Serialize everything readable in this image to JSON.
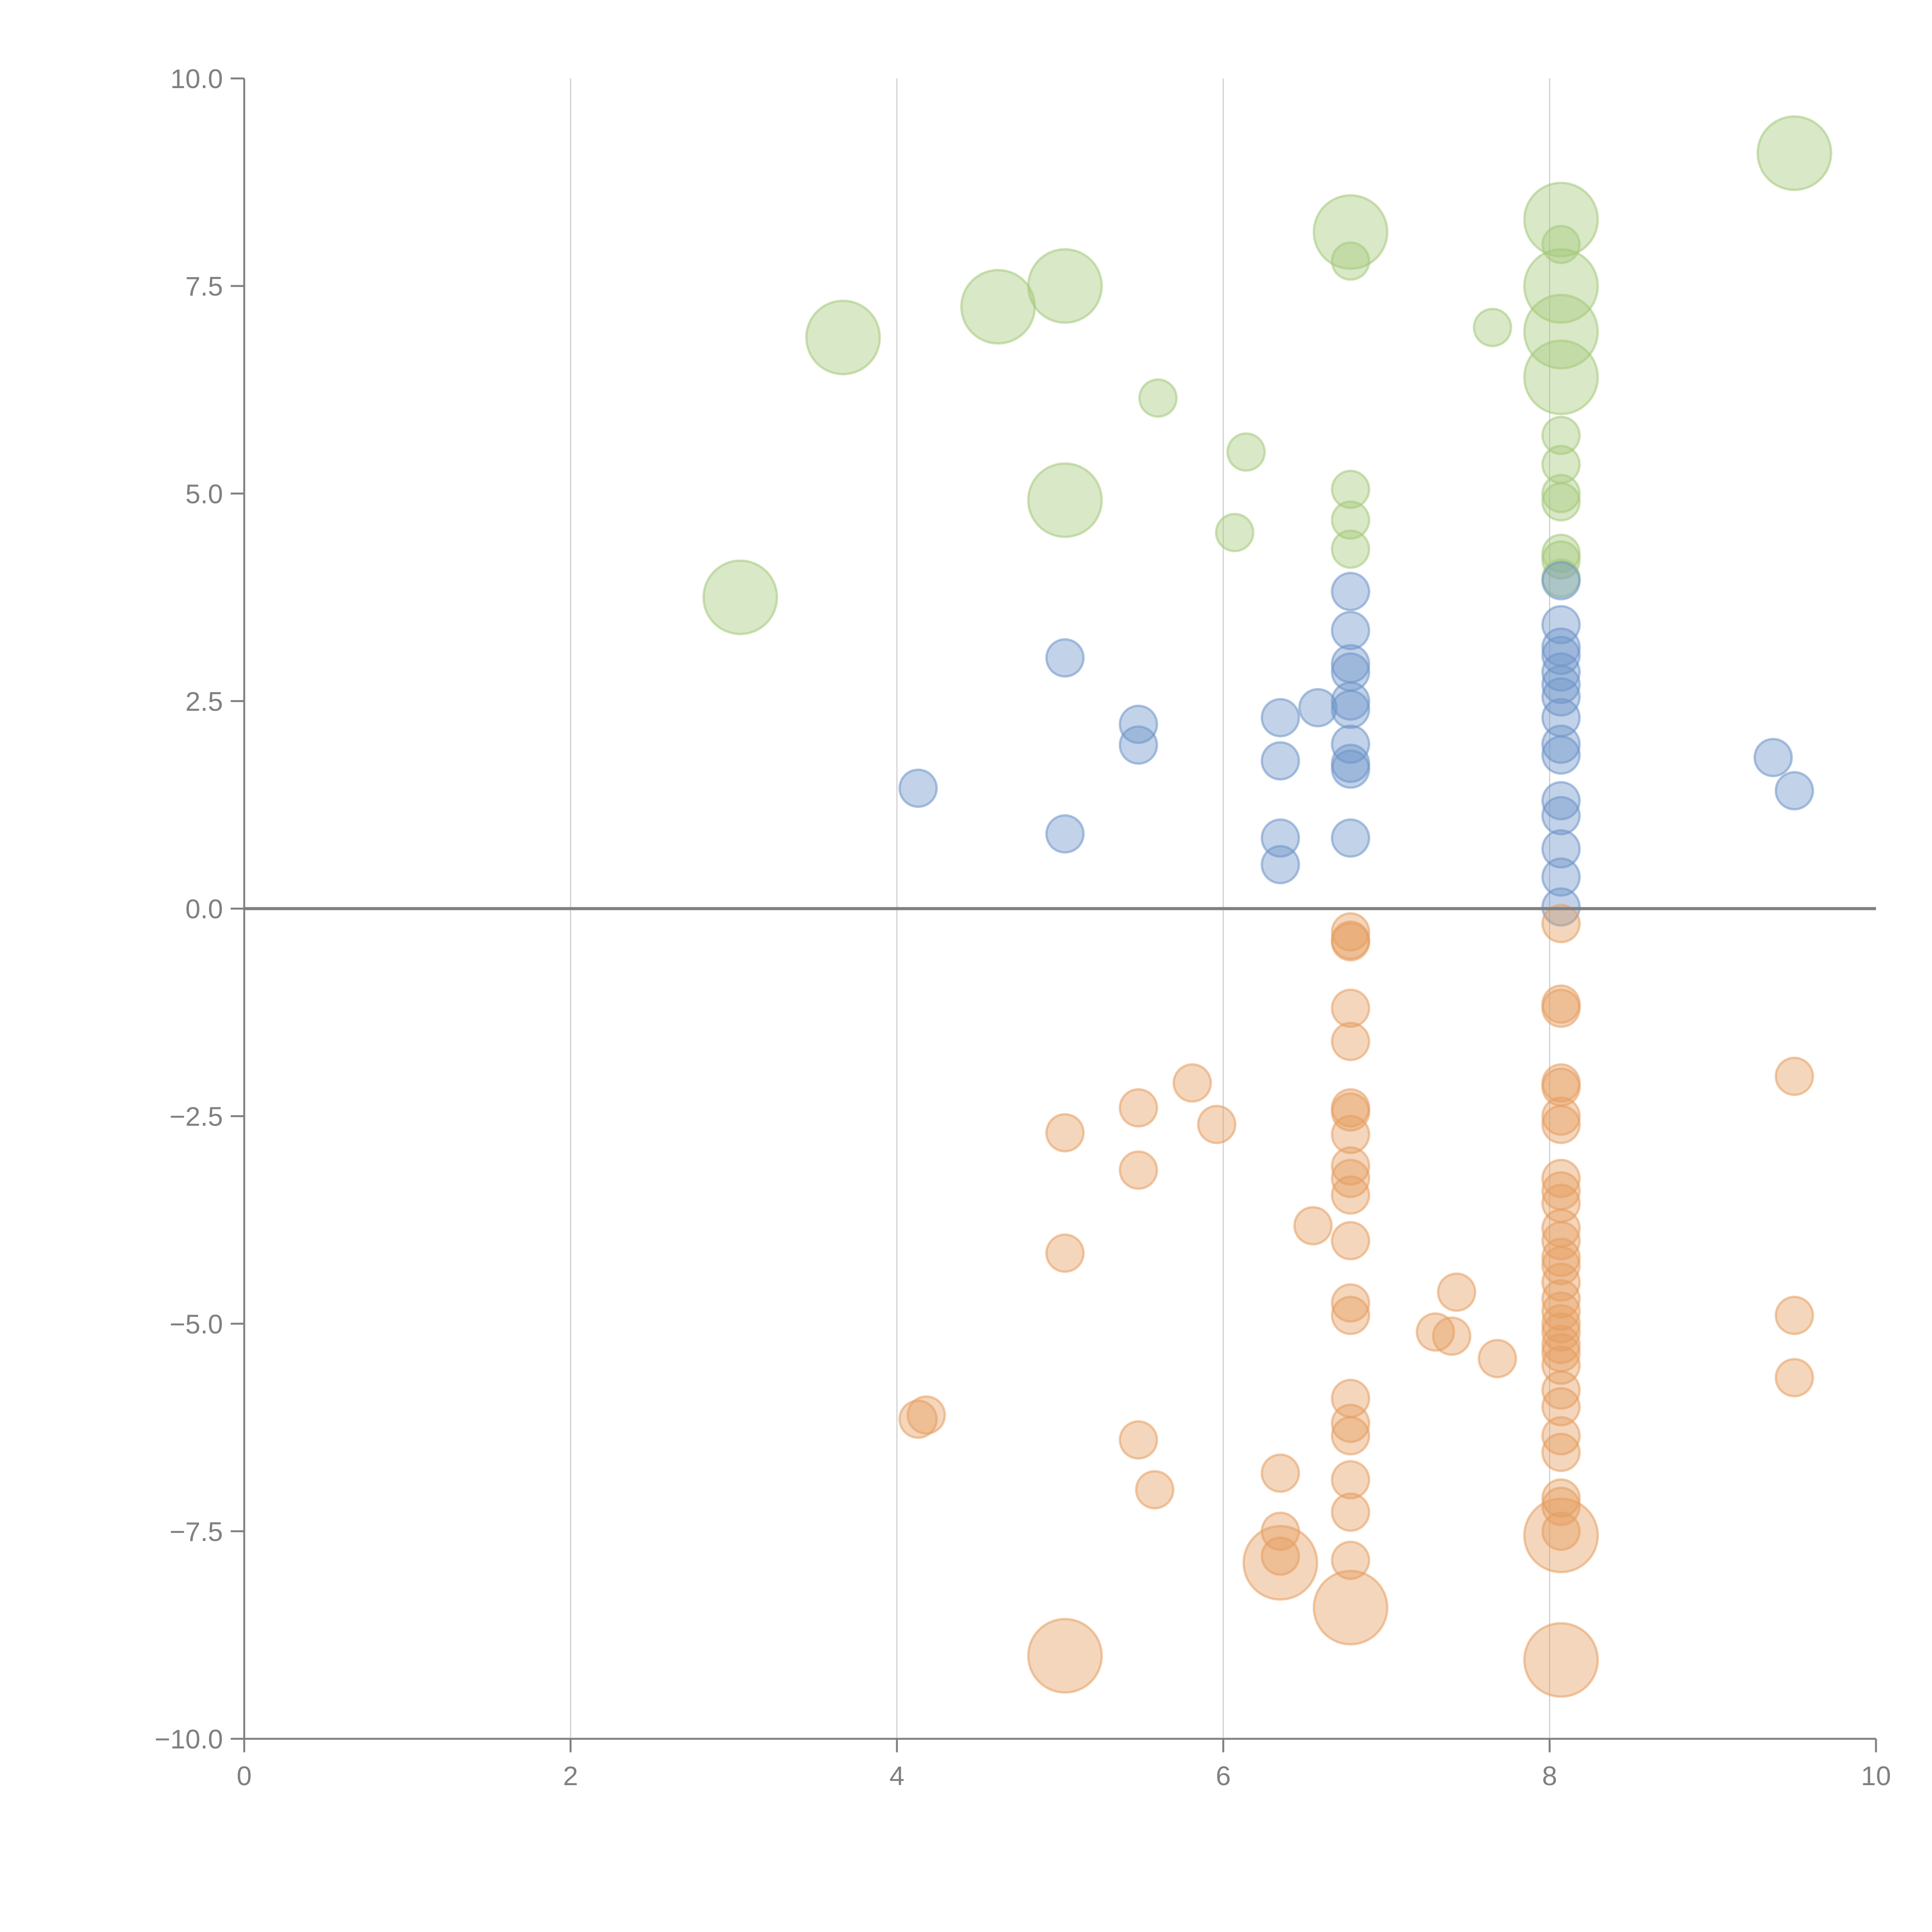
{
  "chart_data": {
    "type": "scatter",
    "subtype": "bubble",
    "title": "",
    "xlabel": "",
    "ylabel": "",
    "xlim": [
      0,
      10
    ],
    "ylim": [
      -10,
      10
    ],
    "grid": "vertical",
    "legend": "none",
    "x_ticks": [
      "0",
      "2",
      "4",
      "6",
      "8",
      "10"
    ],
    "y_ticks": [
      "10.0",
      "7.5",
      "5.0",
      "2.5",
      "0.0",
      "−2.5",
      "−5.0",
      "−7.5",
      "−10.0"
    ],
    "colors": {
      "green": "#a4c87a",
      "blue": "#6e93c9",
      "orange": "#e59e60",
      "axis": "#808080"
    },
    "series": [
      {
        "name": "green",
        "color": "#a4c87a",
        "points": [
          [
            9.5,
            9.1,
            3
          ],
          [
            8.07,
            8.3,
            3
          ],
          [
            6.78,
            8.15,
            3
          ],
          [
            8.07,
            7.5,
            3
          ],
          [
            5.03,
            7.5,
            3
          ],
          [
            4.62,
            7.25,
            3
          ],
          [
            3.67,
            6.88,
            3
          ],
          [
            8.07,
            6.95,
            3
          ],
          [
            8.07,
            6.4,
            3
          ],
          [
            3.04,
            3.75,
            3
          ],
          [
            5.03,
            4.92,
            3
          ],
          [
            8.07,
            8.0,
            1
          ],
          [
            6.78,
            7.8,
            1
          ],
          [
            7.65,
            7.0,
            1
          ],
          [
            5.6,
            6.15,
            1
          ],
          [
            6.14,
            5.5,
            1
          ],
          [
            8.07,
            5.7,
            1
          ],
          [
            8.07,
            5.35,
            1
          ],
          [
            8.07,
            5.0,
            1
          ],
          [
            8.07,
            4.9,
            1
          ],
          [
            6.78,
            5.05,
            1
          ],
          [
            6.78,
            4.68,
            1
          ],
          [
            6.07,
            4.53,
            1
          ],
          [
            6.78,
            4.33,
            1
          ],
          [
            8.07,
            4.28,
            1
          ],
          [
            8.07,
            4.2,
            1
          ],
          [
            8.07,
            3.98,
            1
          ]
        ]
      },
      {
        "name": "blue",
        "color": "#6e93c9",
        "points": [
          [
            6.78,
            3.82,
            1
          ],
          [
            8.07,
            3.95,
            1
          ],
          [
            6.78,
            3.35,
            1
          ],
          [
            8.07,
            3.42,
            1
          ],
          [
            6.78,
            2.95,
            1
          ],
          [
            6.78,
            2.85,
            1
          ],
          [
            8.07,
            3.15,
            1
          ],
          [
            8.07,
            3.05,
            1
          ],
          [
            8.07,
            2.85,
            1
          ],
          [
            8.07,
            2.7,
            1
          ],
          [
            8.07,
            2.55,
            1
          ],
          [
            5.03,
            3.02,
            1
          ],
          [
            6.58,
            2.42,
            1
          ],
          [
            6.35,
            2.3,
            1
          ],
          [
            6.78,
            2.5,
            1
          ],
          [
            6.78,
            2.4,
            1
          ],
          [
            5.48,
            2.22,
            1
          ],
          [
            8.07,
            2.3,
            1
          ],
          [
            5.48,
            1.97,
            1
          ],
          [
            6.78,
            1.98,
            1
          ],
          [
            8.07,
            1.98,
            1
          ],
          [
            8.07,
            1.85,
            1
          ],
          [
            6.35,
            1.78,
            1
          ],
          [
            6.78,
            1.75,
            1
          ],
          [
            6.78,
            1.68,
            1
          ],
          [
            9.37,
            1.82,
            1
          ],
          [
            9.5,
            1.42,
            1
          ],
          [
            4.13,
            1.45,
            1
          ],
          [
            8.07,
            1.3,
            1
          ],
          [
            8.07,
            1.12,
            1
          ],
          [
            5.03,
            0.9,
            1
          ],
          [
            6.35,
            0.85,
            1
          ],
          [
            6.78,
            0.85,
            1
          ],
          [
            8.07,
            0.72,
            1
          ],
          [
            6.35,
            0.53,
            1
          ],
          [
            8.07,
            0.38,
            1
          ],
          [
            8.07,
            0.02,
            1
          ]
        ]
      },
      {
        "name": "orange",
        "color": "#e59e60",
        "points": [
          [
            8.07,
            -0.18,
            1
          ],
          [
            6.78,
            -0.28,
            1
          ],
          [
            6.78,
            -0.38,
            1
          ],
          [
            6.78,
            -0.4,
            1
          ],
          [
            8.07,
            -1.15,
            1
          ],
          [
            8.07,
            -1.2,
            1
          ],
          [
            6.78,
            -1.2,
            1
          ],
          [
            6.78,
            -1.6,
            1
          ],
          [
            8.07,
            -2.1,
            1
          ],
          [
            8.07,
            -2.15,
            1
          ],
          [
            5.81,
            -2.1,
            1
          ],
          [
            9.5,
            -2.02,
            1
          ],
          [
            5.48,
            -2.4,
            1
          ],
          [
            6.78,
            -2.4,
            1
          ],
          [
            6.78,
            -2.45,
            1
          ],
          [
            8.07,
            -2.5,
            1
          ],
          [
            5.96,
            -2.6,
            1
          ],
          [
            8.07,
            -2.6,
            1
          ],
          [
            5.03,
            -2.7,
            1
          ],
          [
            6.78,
            -2.72,
            1
          ],
          [
            5.48,
            -3.15,
            1
          ],
          [
            6.78,
            -3.1,
            1
          ],
          [
            6.78,
            -3.25,
            1
          ],
          [
            8.07,
            -3.25,
            1
          ],
          [
            8.07,
            -3.4,
            1
          ],
          [
            8.07,
            -3.55,
            1
          ],
          [
            6.78,
            -3.45,
            1
          ],
          [
            6.55,
            -3.82,
            1
          ],
          [
            8.07,
            -3.85,
            1
          ],
          [
            8.07,
            -4.0,
            1
          ],
          [
            6.78,
            -4.0,
            1
          ],
          [
            5.03,
            -4.15,
            1
          ],
          [
            8.07,
            -4.2,
            1
          ],
          [
            8.07,
            -4.3,
            1
          ],
          [
            8.07,
            -4.5,
            1
          ],
          [
            7.43,
            -4.62,
            1
          ],
          [
            8.07,
            -4.7,
            1
          ],
          [
            6.78,
            -4.75,
            1
          ],
          [
            8.07,
            -4.85,
            1
          ],
          [
            6.78,
            -4.9,
            1
          ],
          [
            9.5,
            -4.9,
            1
          ],
          [
            8.07,
            -5.0,
            1
          ],
          [
            8.07,
            -5.1,
            1
          ],
          [
            7.3,
            -5.1,
            1
          ],
          [
            7.4,
            -5.15,
            1
          ],
          [
            8.07,
            -5.25,
            1
          ],
          [
            8.07,
            -5.35,
            1
          ],
          [
            7.68,
            -5.42,
            1
          ],
          [
            8.07,
            -5.5,
            1
          ],
          [
            9.5,
            -5.65,
            1
          ],
          [
            8.07,
            -5.8,
            1
          ],
          [
            6.78,
            -5.9,
            1
          ],
          [
            8.07,
            -6.0,
            1
          ],
          [
            4.13,
            -6.15,
            1
          ],
          [
            4.18,
            -6.1,
            1
          ],
          [
            6.78,
            -6.2,
            1
          ],
          [
            6.78,
            -6.35,
            1
          ],
          [
            8.07,
            -6.35,
            1
          ],
          [
            5.48,
            -6.4,
            1
          ],
          [
            8.07,
            -6.55,
            1
          ],
          [
            6.35,
            -6.8,
            1
          ],
          [
            6.78,
            -6.88,
            1
          ],
          [
            5.58,
            -7.0,
            1
          ],
          [
            8.07,
            -7.1,
            1
          ],
          [
            8.07,
            -7.2,
            1
          ],
          [
            6.78,
            -7.27,
            1
          ],
          [
            6.35,
            -7.5,
            1
          ],
          [
            8.07,
            -7.5,
            1
          ],
          [
            6.35,
            -7.8,
            1
          ],
          [
            6.78,
            -7.85,
            1
          ],
          [
            8.07,
            -7.55,
            3
          ],
          [
            6.35,
            -7.88,
            3
          ],
          [
            6.78,
            -8.42,
            3
          ],
          [
            5.03,
            -9.0,
            3
          ],
          [
            8.07,
            -9.05,
            3
          ]
        ]
      }
    ]
  }
}
